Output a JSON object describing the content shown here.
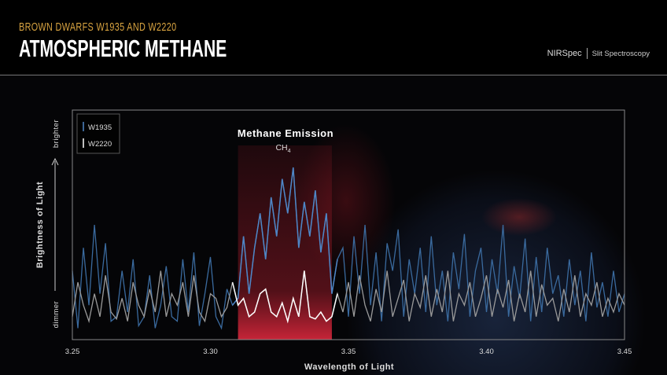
{
  "header": {
    "subtitle": "BROWN DWARFS W1935 AND W2220",
    "title": "ATMOSPHERIC METHANE",
    "instrument": "NIRSpec",
    "mode": "Slit Spectroscopy"
  },
  "chart_data": {
    "type": "line",
    "xlabel": "Wavelength of Light",
    "ylabel": "Brightness of Light",
    "y_top_label": "brighter",
    "y_bottom_label": "dimmer",
    "xlim": [
      3.25,
      3.45
    ],
    "ylim": [
      0,
      1
    ],
    "x_ticks": [
      "3.25",
      "3.30",
      "3.35",
      "3.40",
      "3.45"
    ],
    "x_start": 3.25,
    "x_step": 0.002,
    "legend_position": "top-left",
    "annotation": {
      "title": "Methane Emission",
      "formula": "CH",
      "formula_sub": "4",
      "x_range": [
        3.31,
        3.344
      ],
      "color": "#b01e2e"
    },
    "series": [
      {
        "name": "W1935",
        "color": "#4f86c6",
        "values": [
          0.3,
          0.05,
          0.4,
          0.15,
          0.5,
          0.2,
          0.42,
          0.08,
          0.1,
          0.3,
          0.12,
          0.35,
          0.06,
          0.1,
          0.28,
          0.05,
          0.15,
          0.32,
          0.1,
          0.08,
          0.35,
          0.12,
          0.38,
          0.06,
          0.2,
          0.36,
          0.1,
          0.05,
          0.22,
          0.15,
          0.18,
          0.45,
          0.2,
          0.4,
          0.55,
          0.35,
          0.62,
          0.45,
          0.7,
          0.55,
          0.75,
          0.4,
          0.6,
          0.45,
          0.65,
          0.38,
          0.55,
          0.2,
          0.35,
          0.4,
          0.1,
          0.45,
          0.2,
          0.5,
          0.15,
          0.38,
          0.08,
          0.42,
          0.3,
          0.48,
          0.1,
          0.35,
          0.2,
          0.4,
          0.12,
          0.45,
          0.15,
          0.3,
          0.08,
          0.38,
          0.22,
          0.46,
          0.1,
          0.3,
          0.4,
          0.12,
          0.35,
          0.2,
          0.5,
          0.1,
          0.32,
          0.18,
          0.44,
          0.08,
          0.36,
          0.12,
          0.4,
          0.2,
          0.28,
          0.1,
          0.35,
          0.15,
          0.3,
          0.08,
          0.38,
          0.14,
          0.25,
          0.1,
          0.3,
          0.12,
          0.2
        ]
      },
      {
        "name": "W2220",
        "color": "#ffffff",
        "values": [
          0.1,
          0.25,
          0.15,
          0.08,
          0.2,
          0.1,
          0.28,
          0.12,
          0.09,
          0.18,
          0.08,
          0.25,
          0.15,
          0.1,
          0.22,
          0.12,
          0.3,
          0.1,
          0.2,
          0.15,
          0.25,
          0.1,
          0.28,
          0.12,
          0.08,
          0.2,
          0.18,
          0.1,
          0.14,
          0.25,
          0.15,
          0.18,
          0.1,
          0.12,
          0.2,
          0.22,
          0.12,
          0.1,
          0.16,
          0.08,
          0.18,
          0.1,
          0.3,
          0.1,
          0.09,
          0.12,
          0.08,
          0.1,
          0.2,
          0.12,
          0.25,
          0.1,
          0.28,
          0.15,
          0.08,
          0.22,
          0.12,
          0.3,
          0.1,
          0.18,
          0.26,
          0.08,
          0.2,
          0.14,
          0.28,
          0.1,
          0.22,
          0.12,
          0.3,
          0.08,
          0.2,
          0.15,
          0.25,
          0.1,
          0.18,
          0.28,
          0.1,
          0.22,
          0.14,
          0.26,
          0.08,
          0.2,
          0.12,
          0.3,
          0.1,
          0.24,
          0.15,
          0.18,
          0.08,
          0.22,
          0.12,
          0.28,
          0.1,
          0.2,
          0.15,
          0.25,
          0.1,
          0.18,
          0.12,
          0.2,
          0.15
        ]
      }
    ]
  }
}
